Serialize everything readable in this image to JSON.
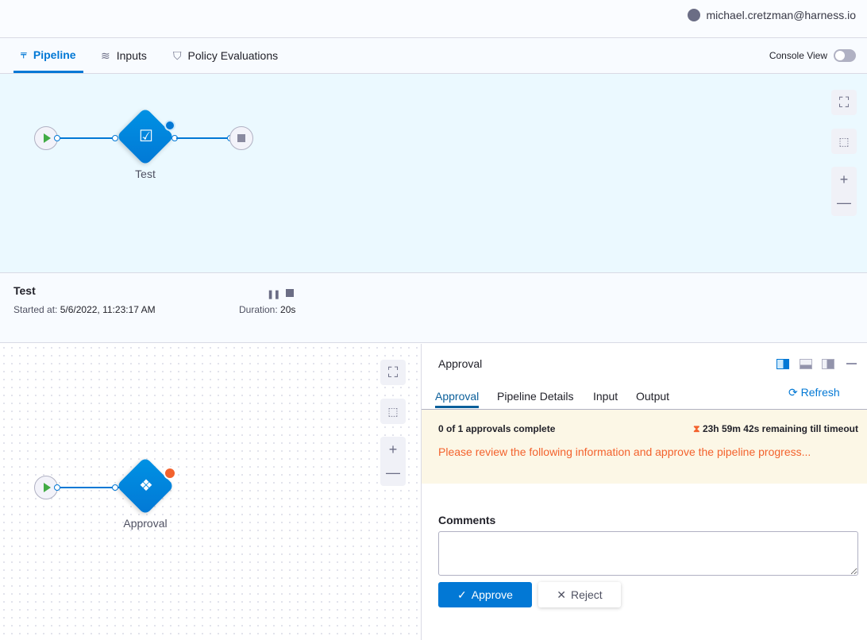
{
  "header": {
    "user": "michael.cretzman@harness.io"
  },
  "tabs": [
    {
      "label": "Pipeline",
      "active": true
    },
    {
      "label": "Inputs"
    },
    {
      "label": "Policy Evaluations"
    }
  ],
  "console_view": {
    "label": "Console View",
    "on": false
  },
  "pipeline_graph": {
    "stage_name": "Test"
  },
  "stage_info": {
    "name": "Test",
    "started_label": "Started at:",
    "started_value": "5/6/2022, 11:23:17 AM",
    "duration_label": "Duration:",
    "duration_value": "20s"
  },
  "step_graph": {
    "step_name": "Approval"
  },
  "panel": {
    "title": "Approval",
    "tabs": [
      {
        "label": "Approval",
        "active": true
      },
      {
        "label": "Pipeline Details"
      },
      {
        "label": "Input"
      },
      {
        "label": "Output"
      }
    ],
    "refresh": "Refresh",
    "approvals_status": "0 of 1 approvals complete",
    "timeout": "23h 59m 42s remaining till timeout",
    "message": "Please review the following information and approve the pipeline progress...",
    "comments_label": "Comments",
    "comments_value": "",
    "approve": "Approve",
    "reject": "Reject"
  },
  "colors": {
    "accent": "#0278d5",
    "warning_text": "#f3622d",
    "banner_bg": "#fcf7e6"
  }
}
